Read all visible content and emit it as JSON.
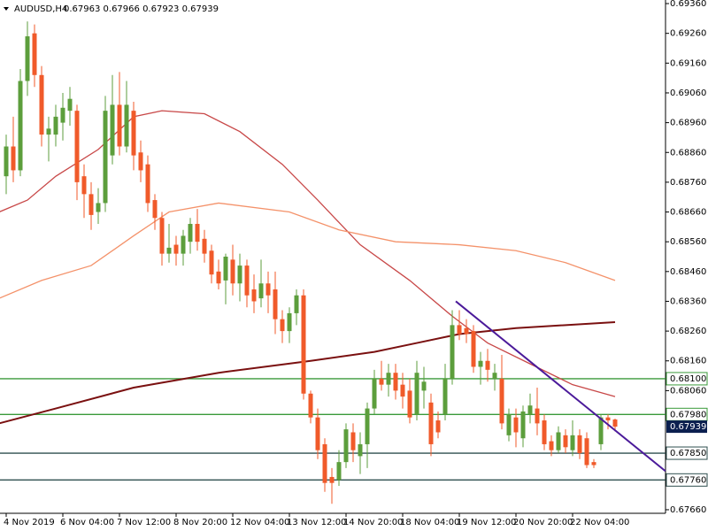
{
  "chart_data": {
    "type": "candlestick",
    "title": "AUDUSD,H4",
    "subtitle": "0.67963 0.67966 0.67923 0.67939",
    "categories": [
      "4 Nov 2019",
      null,
      null,
      null,
      null,
      null,
      null,
      null,
      "6 Nov 04:00",
      null,
      null,
      null,
      null,
      null,
      null,
      null,
      "7 Nov 12:00",
      null,
      null,
      null,
      null,
      null,
      null,
      null,
      "8 Nov 20:00",
      null,
      null,
      null,
      null,
      null,
      null,
      null,
      "12 Nov 04:00",
      null,
      null,
      null,
      null,
      null,
      null,
      null,
      "13 Nov 12:00",
      null,
      null,
      null,
      null,
      null,
      null,
      null,
      "14 Nov 20:00",
      null,
      null,
      null,
      null,
      null,
      null,
      null,
      "18 Nov 04:00",
      null,
      null,
      null,
      null,
      null,
      null,
      null,
      "19 Nov 12:00",
      null,
      null,
      null,
      null,
      null,
      null,
      null,
      "20 Nov 20:00",
      null,
      null,
      null,
      null,
      null,
      null,
      null,
      "22 Nov 04:00",
      null,
      null,
      null,
      null,
      null,
      null
    ],
    "open": [
      0.6878,
      0.6888,
      0.688,
      0.691,
      0.6926,
      0.6912,
      0.6892,
      0.6892,
      0.6896,
      0.69,
      0.69,
      0.6878,
      0.6872,
      0.6866,
      0.6869,
      0.6885,
      0.6902,
      0.6888,
      0.69,
      0.6886,
      0.6882,
      0.687,
      0.6864,
      0.6852,
      0.6855,
      0.6852,
      0.6856,
      0.6862,
      0.6857,
      0.6853,
      0.6846,
      0.6843,
      0.685,
      0.6842,
      0.6848,
      0.684,
      0.6837,
      0.6842,
      0.684,
      0.683,
      0.6826,
      0.6832,
      0.6838,
      0.6805,
      0.6797,
      0.6788,
      0.6777,
      0.6776,
      0.6782,
      0.6792,
      0.6784,
      0.6788,
      0.68,
      0.681,
      0.6808,
      0.6812,
      0.6808,
      0.6806,
      0.6798,
      0.6806,
      0.6802,
      0.6796,
      0.6798,
      0.681,
      0.6828,
      0.6827,
      0.6826,
      0.6814,
      0.6816,
      0.681,
      0.681,
      0.6791,
      0.6797,
      0.679,
      0.6798,
      0.68,
      0.6796,
      0.6789,
      0.6786,
      0.6791,
      0.6786,
      0.6791,
      0.679,
      0.6782,
      0.6788,
      0.6797,
      0.67963
    ],
    "high": [
      0.6892,
      0.6898,
      0.6914,
      0.693,
      0.6929,
      0.6915,
      0.6898,
      0.6902,
      0.6906,
      0.6908,
      0.6902,
      0.6882,
      0.6876,
      0.6874,
      0.6905,
      0.6912,
      0.6913,
      0.691,
      0.6903,
      0.689,
      0.6885,
      0.6872,
      0.6866,
      0.6862,
      0.6858,
      0.686,
      0.6864,
      0.6867,
      0.686,
      0.6855,
      0.685,
      0.6852,
      0.6855,
      0.6852,
      0.685,
      0.6845,
      0.685,
      0.6846,
      0.6846,
      0.6833,
      0.6834,
      0.684,
      0.684,
      0.6806,
      0.68,
      0.679,
      0.678,
      0.6786,
      0.6795,
      0.6795,
      0.6792,
      0.6802,
      0.6813,
      0.6816,
      0.6815,
      0.6815,
      0.6812,
      0.681,
      0.6816,
      0.6814,
      0.6805,
      0.6799,
      0.6815,
      0.6833,
      0.6833,
      0.683,
      0.6828,
      0.6819,
      0.682,
      0.6815,
      0.6818,
      0.68,
      0.68,
      0.6801,
      0.6805,
      0.6807,
      0.6798,
      0.6791,
      0.6794,
      0.6793,
      0.6796,
      0.6793,
      0.6792,
      0.6783,
      0.6798,
      0.6798,
      0.67966
    ],
    "low": [
      0.6872,
      0.6876,
      0.6878,
      0.6905,
      0.6908,
      0.6888,
      0.6883,
      0.6888,
      0.689,
      0.6895,
      0.687,
      0.6864,
      0.686,
      0.6862,
      0.6866,
      0.6882,
      0.6885,
      0.6886,
      0.688,
      0.6876,
      0.6866,
      0.686,
      0.6848,
      0.6849,
      0.6848,
      0.6848,
      0.6852,
      0.6853,
      0.6849,
      0.6842,
      0.684,
      0.6835,
      0.6838,
      0.6836,
      0.6834,
      0.6832,
      0.6834,
      0.6832,
      0.6825,
      0.6822,
      0.6822,
      0.6828,
      0.6803,
      0.6795,
      0.6783,
      0.6772,
      0.6768,
      0.6774,
      0.678,
      0.6782,
      0.6778,
      0.678,
      0.6798,
      0.6806,
      0.6804,
      0.6803,
      0.68,
      0.6795,
      0.6796,
      0.68,
      0.6784,
      0.679,
      0.6796,
      0.6808,
      0.6823,
      0.6822,
      0.6812,
      0.6808,
      0.6809,
      0.6806,
      0.6793,
      0.6789,
      0.6787,
      0.6787,
      0.6795,
      0.6791,
      0.6786,
      0.6784,
      0.6785,
      0.6785,
      0.6784,
      0.6783,
      0.678,
      0.678,
      0.6786,
      0.6793,
      0.67923
    ],
    "close": [
      0.6888,
      0.688,
      0.691,
      0.6925,
      0.6912,
      0.6892,
      0.6894,
      0.6898,
      0.6901,
      0.6904,
      0.6876,
      0.6872,
      0.6865,
      0.6869,
      0.69,
      0.6902,
      0.6888,
      0.6902,
      0.6885,
      0.688,
      0.6869,
      0.6864,
      0.6852,
      0.6854,
      0.6852,
      0.6858,
      0.6862,
      0.6856,
      0.6852,
      0.6845,
      0.6842,
      0.6851,
      0.6842,
      0.6848,
      0.6838,
      0.6836,
      0.6842,
      0.6838,
      0.683,
      0.6826,
      0.6832,
      0.6838,
      0.6805,
      0.6797,
      0.6786,
      0.6775,
      0.6775,
      0.6782,
      0.6793,
      0.6786,
      0.6788,
      0.68,
      0.681,
      0.6808,
      0.6812,
      0.6806,
      0.6804,
      0.6797,
      0.6812,
      0.6809,
      0.6788,
      0.6792,
      0.681,
      0.6828,
      0.6825,
      0.6825,
      0.6814,
      0.6816,
      0.6813,
      0.6812,
      0.6795,
      0.6798,
      0.6792,
      0.6799,
      0.6801,
      0.6795,
      0.6788,
      0.6786,
      0.6792,
      0.6787,
      0.6791,
      0.6785,
      0.6781,
      0.6781,
      0.6797,
      0.6796,
      0.67939
    ],
    "up_color": "#5c9e3c",
    "down_color": "#f05a2a",
    "lines": [
      {
        "color": "#c84848",
        "x": [
          -1,
          3,
          7,
          13,
          18,
          22,
          28,
          33,
          39,
          44,
          50,
          57,
          63,
          68,
          74,
          80,
          86
        ],
        "values": [
          0.6866,
          0.687,
          0.6878,
          0.6887,
          0.6898,
          0.69,
          0.6899,
          0.6893,
          0.6882,
          0.687,
          0.6855,
          0.6843,
          0.6831,
          0.6822,
          0.6815,
          0.6808,
          0.6804
        ]
      },
      {
        "color": "#f4926a",
        "x": [
          -1,
          5,
          12,
          18,
          23,
          30,
          40,
          47,
          55,
          64,
          72,
          79,
          86
        ],
        "values": [
          0.6837,
          0.6843,
          0.6848,
          0.6858,
          0.6866,
          0.6869,
          0.6866,
          0.686,
          0.6856,
          0.6855,
          0.6853,
          0.6849,
          0.6843
        ]
      },
      {
        "color": "#7a1010",
        "x": [
          -1,
          7,
          18,
          30,
          43,
          52,
          58,
          64,
          72,
          86
        ],
        "values": [
          0.6795,
          0.68,
          0.6807,
          0.6812,
          0.6816,
          0.6819,
          0.6822,
          0.6825,
          0.6827,
          0.6829
        ]
      }
    ],
    "trendline": {
      "color": "#4b1a9a",
      "x": [
        63.5,
        93.1
      ],
      "values": [
        0.6836,
        0.6779
      ]
    },
    "hlines": [
      {
        "value": 0.681,
        "label": "0.68100",
        "color": "#3a9a3a"
      },
      {
        "value": 0.6798,
        "label": "0.67980",
        "color": "#3a9a3a"
      },
      {
        "value": 0.6785,
        "label": "0.67850",
        "color": "#2f4f4f"
      },
      {
        "value": 0.6776,
        "label": "0.67760",
        "color": "#2f4f4f"
      }
    ],
    "last_price": {
      "value": 0.67939,
      "label": "0.67939",
      "color": "#0b1f4f"
    },
    "xlim": [
      -0.875,
      93.125
    ],
    "ylim": [
      0.67648,
      0.69372
    ],
    "yticks": [
      {
        "value": 0.6936,
        "label": "0.69360"
      },
      {
        "value": 0.6926,
        "label": "0.69260"
      },
      {
        "value": 0.6916,
        "label": "0.69160"
      },
      {
        "value": 0.6906,
        "label": "0.69060"
      },
      {
        "value": 0.6896,
        "label": "0.68960"
      },
      {
        "value": 0.6886,
        "label": "0.68860"
      },
      {
        "value": 0.6876,
        "label": "0.68760"
      },
      {
        "value": 0.6866,
        "label": "0.68660"
      },
      {
        "value": 0.6856,
        "label": "0.68560"
      },
      {
        "value": 0.6846,
        "label": "0.68460"
      },
      {
        "value": 0.6836,
        "label": "0.68360"
      },
      {
        "value": 0.6826,
        "label": "0.68260"
      },
      {
        "value": 0.6816,
        "label": "0.68160"
      },
      {
        "value": 0.6806,
        "label": "0.68060"
      },
      {
        "value": 0.6766,
        "label": "0.67660"
      }
    ]
  }
}
